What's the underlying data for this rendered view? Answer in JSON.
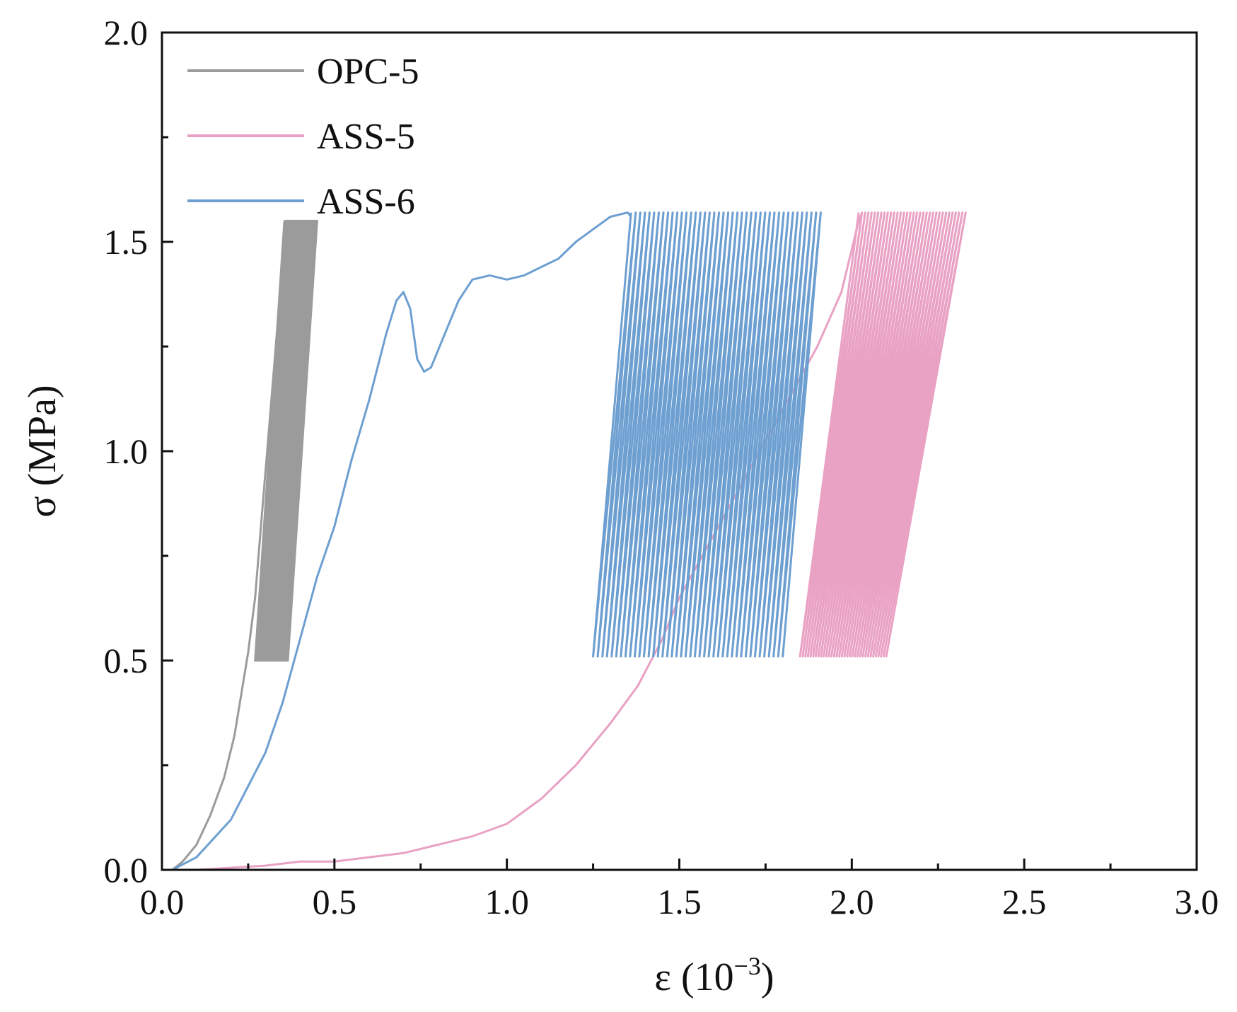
{
  "chart_data": {
    "type": "line",
    "title": "",
    "xlabel": "ε (10",
    "xlabel_sup": "−3",
    "xlabel_close": ")",
    "ylabel": "σ (MPa)",
    "xlim": [
      0.0,
      3.0
    ],
    "ylim": [
      0.0,
      2.0
    ],
    "x_ticks": [
      0.0,
      0.5,
      1.0,
      1.5,
      2.0,
      2.5,
      3.0
    ],
    "x_tick_labels": [
      "0.0",
      "0.5",
      "1.0",
      "1.5",
      "2.0",
      "2.5",
      "3.0"
    ],
    "y_ticks": [
      0.0,
      0.5,
      1.0,
      1.5,
      2.0
    ],
    "y_tick_labels": [
      "0.0",
      "0.5",
      "1.0",
      "1.5",
      "2.0"
    ],
    "x_minor_step": 0.25,
    "y_minor_step": 0.25,
    "grid": false,
    "legend_position": "top-left",
    "series": [
      {
        "name": "OPC-5",
        "color": "#9b9b9b",
        "initial_curve": [
          [
            0.03,
            0.0
          ],
          [
            0.06,
            0.02
          ],
          [
            0.1,
            0.06
          ],
          [
            0.14,
            0.13
          ],
          [
            0.18,
            0.22
          ],
          [
            0.21,
            0.32
          ],
          [
            0.23,
            0.42
          ],
          [
            0.25,
            0.52
          ],
          [
            0.27,
            0.65
          ],
          [
            0.29,
            0.85
          ],
          [
            0.31,
            1.05
          ],
          [
            0.33,
            1.25
          ],
          [
            0.345,
            1.4
          ],
          [
            0.355,
            1.54
          ]
        ],
        "cycles": {
          "count": 60,
          "lower_stress": 0.5,
          "upper_stress": 1.55,
          "first_upper_strain": 0.355,
          "last_upper_strain": 0.45,
          "first_lower_strain": 0.27,
          "last_lower_strain": 0.365
        }
      },
      {
        "name": "ASS-5",
        "color": "#e9a1c4",
        "initial_curve": [
          [
            0.0,
            0.0
          ],
          [
            0.1,
            0.0
          ],
          [
            0.2,
            0.005
          ],
          [
            0.3,
            0.01
          ],
          [
            0.4,
            0.02
          ],
          [
            0.5,
            0.02
          ],
          [
            0.6,
            0.03
          ],
          [
            0.7,
            0.04
          ],
          [
            0.8,
            0.06
          ],
          [
            0.9,
            0.08
          ],
          [
            1.0,
            0.11
          ],
          [
            1.1,
            0.17
          ],
          [
            1.2,
            0.25
          ],
          [
            1.3,
            0.35
          ],
          [
            1.38,
            0.44
          ],
          [
            1.45,
            0.55
          ],
          [
            1.5,
            0.65
          ],
          [
            1.6,
            0.8
          ],
          [
            1.7,
            0.95
          ],
          [
            1.8,
            1.1
          ],
          [
            1.9,
            1.25
          ],
          [
            1.97,
            1.38
          ],
          [
            2.02,
            1.55
          ],
          [
            2.03,
            1.57
          ]
        ],
        "cycles": {
          "count": 34,
          "lower_stress": 0.51,
          "upper_stress": 1.57,
          "first_upper_strain": 2.02,
          "last_upper_strain": 2.33,
          "first_lower_strain": 1.85,
          "last_lower_strain": 2.1
        }
      },
      {
        "name": "ASS-6",
        "color": "#6d9fd1",
        "initial_curve": [
          [
            0.03,
            0.0
          ],
          [
            0.1,
            0.03
          ],
          [
            0.2,
            0.12
          ],
          [
            0.3,
            0.28
          ],
          [
            0.35,
            0.4
          ],
          [
            0.4,
            0.55
          ],
          [
            0.45,
            0.7
          ],
          [
            0.5,
            0.82
          ],
          [
            0.55,
            0.98
          ],
          [
            0.6,
            1.12
          ],
          [
            0.65,
            1.28
          ],
          [
            0.68,
            1.36
          ],
          [
            0.7,
            1.38
          ],
          [
            0.72,
            1.34
          ],
          [
            0.74,
            1.22
          ],
          [
            0.76,
            1.19
          ],
          [
            0.78,
            1.2
          ],
          [
            0.82,
            1.28
          ],
          [
            0.86,
            1.36
          ],
          [
            0.9,
            1.41
          ],
          [
            0.95,
            1.42
          ],
          [
            1.0,
            1.41
          ],
          [
            1.05,
            1.42
          ],
          [
            1.1,
            1.44
          ],
          [
            1.15,
            1.46
          ],
          [
            1.2,
            1.5
          ],
          [
            1.25,
            1.53
          ],
          [
            1.3,
            1.56
          ],
          [
            1.35,
            1.57
          ],
          [
            1.36,
            1.56
          ]
        ],
        "cycles": {
          "count": 42,
          "lower_stress": 0.51,
          "upper_stress": 1.57,
          "first_upper_strain": 1.36,
          "last_upper_strain": 1.91,
          "first_lower_strain": 1.25,
          "last_lower_strain": 1.8
        }
      }
    ]
  }
}
